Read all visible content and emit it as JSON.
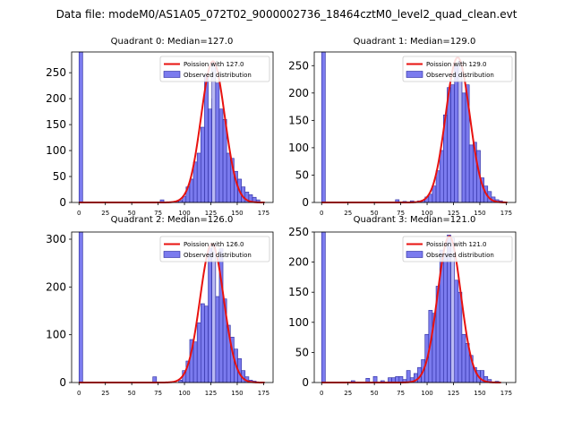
{
  "page_title": "Data file: modeM0/AS1A05_072T02_9000002736_18464cztM0_level2_quad_clean.evt",
  "colors": {
    "bar_fill": "#7b7bee",
    "bar_edge": "#2a2aa0",
    "bar_highlight": "#b9b9f2",
    "poisson_line": "#e8120f",
    "axis": "#000000",
    "legend_border": "#cccccc"
  },
  "chart_data": [
    {
      "type": "bar",
      "title": "Quadrant 0: Median=127.0",
      "xlabel": "",
      "ylabel": "",
      "xlim": [
        -7,
        184
      ],
      "ylim": [
        0,
        290
      ],
      "xticks": [
        0,
        25,
        50,
        75,
        100,
        125,
        150,
        175
      ],
      "yticks": [
        0,
        50,
        100,
        150,
        200,
        250
      ],
      "bin_width": 3.5,
      "legend": {
        "position": "top-right",
        "entries": [
          "Poission with 127.0",
          "Observed distribution"
        ]
      },
      "bins": [
        {
          "x": 0,
          "count": 290
        },
        {
          "x": 56,
          "count": 1
        },
        {
          "x": 77,
          "count": 5
        },
        {
          "x": 91,
          "count": 2
        },
        {
          "x": 94.5,
          "count": 4
        },
        {
          "x": 98,
          "count": 12
        },
        {
          "x": 101.5,
          "count": 30
        },
        {
          "x": 105,
          "count": 45
        },
        {
          "x": 108.5,
          "count": 78
        },
        {
          "x": 112,
          "count": 95
        },
        {
          "x": 115.5,
          "count": 145
        },
        {
          "x": 119,
          "count": 245
        },
        {
          "x": 122.5,
          "count": 180
        },
        {
          "x": 126,
          "count": 200
        },
        {
          "x": 129.5,
          "count": 230
        },
        {
          "x": 133,
          "count": 180
        },
        {
          "x": 136.5,
          "count": 160
        },
        {
          "x": 140,
          "count": 95
        },
        {
          "x": 143.5,
          "count": 85
        },
        {
          "x": 147,
          "count": 60
        },
        {
          "x": 150.5,
          "count": 45
        },
        {
          "x": 154,
          "count": 30
        },
        {
          "x": 157.5,
          "count": 20
        },
        {
          "x": 161,
          "count": 15
        },
        {
          "x": 164.5,
          "count": 10
        },
        {
          "x": 168,
          "count": 5
        }
      ],
      "poisson": {
        "name": "Poission with 127.0",
        "mean": 127.0,
        "peak": 272,
        "range": [
          0,
          176
        ]
      },
      "highlight": {
        "x": 126,
        "count": 270
      }
    },
    {
      "type": "bar",
      "title": "Quadrant 1: Median=129.0",
      "xlabel": "",
      "ylabel": "",
      "xlim": [
        -7,
        184
      ],
      "ylim": [
        0,
        275
      ],
      "xticks": [
        0,
        25,
        50,
        75,
        100,
        125,
        150,
        175
      ],
      "yticks": [
        0,
        50,
        100,
        150,
        200,
        250
      ],
      "bin_width": 3.5,
      "legend": {
        "position": "top-right",
        "entries": [
          "Poission with 129.0",
          "Observed distribution"
        ]
      },
      "bins": [
        {
          "x": 0,
          "count": 275
        },
        {
          "x": 70,
          "count": 5
        },
        {
          "x": 77,
          "count": 2
        },
        {
          "x": 84,
          "count": 3
        },
        {
          "x": 91,
          "count": 3
        },
        {
          "x": 94.5,
          "count": 4
        },
        {
          "x": 98,
          "count": 10
        },
        {
          "x": 101.5,
          "count": 15
        },
        {
          "x": 105,
          "count": 30
        },
        {
          "x": 108.5,
          "count": 58
        },
        {
          "x": 112,
          "count": 95
        },
        {
          "x": 115.5,
          "count": 160
        },
        {
          "x": 119,
          "count": 210
        },
        {
          "x": 122.5,
          "count": 215
        },
        {
          "x": 126,
          "count": 250
        },
        {
          "x": 129.5,
          "count": 225
        },
        {
          "x": 133,
          "count": 200
        },
        {
          "x": 136.5,
          "count": 215
        },
        {
          "x": 140,
          "count": 105
        },
        {
          "x": 143.5,
          "count": 110
        },
        {
          "x": 147,
          "count": 95
        },
        {
          "x": 150.5,
          "count": 45
        },
        {
          "x": 154,
          "count": 30
        },
        {
          "x": 157.5,
          "count": 20
        },
        {
          "x": 161,
          "count": 10
        },
        {
          "x": 164.5,
          "count": 5
        },
        {
          "x": 168,
          "count": 3
        }
      ],
      "poisson": {
        "name": "Poission with 129.0",
        "mean": 129.0,
        "peak": 265,
        "range": [
          0,
          176
        ]
      },
      "highlight": {
        "x": 129.5,
        "count": 258
      }
    },
    {
      "type": "bar",
      "title": "Quadrant 2: Median=126.0",
      "xlabel": "",
      "ylabel": "",
      "xlim": [
        -7,
        184
      ],
      "ylim": [
        0,
        315
      ],
      "xticks": [
        0,
        25,
        50,
        75,
        100,
        125,
        150,
        175
      ],
      "yticks": [
        0,
        100,
        200,
        300
      ],
      "bin_width": 3.5,
      "legend": {
        "position": "top-right",
        "entries": [
          "Poission with 126.0",
          "Observed distribution"
        ]
      },
      "bins": [
        {
          "x": 0,
          "count": 315
        },
        {
          "x": 70,
          "count": 12
        },
        {
          "x": 94.5,
          "count": 5
        },
        {
          "x": 98,
          "count": 25
        },
        {
          "x": 101.5,
          "count": 45
        },
        {
          "x": 105,
          "count": 90
        },
        {
          "x": 108.5,
          "count": 85
        },
        {
          "x": 112,
          "count": 125
        },
        {
          "x": 115.5,
          "count": 165
        },
        {
          "x": 119,
          "count": 160
        },
        {
          "x": 122.5,
          "count": 280
        },
        {
          "x": 126,
          "count": 275
        },
        {
          "x": 129.5,
          "count": 180
        },
        {
          "x": 133,
          "count": 280
        },
        {
          "x": 136.5,
          "count": 175
        },
        {
          "x": 140,
          "count": 120
        },
        {
          "x": 143.5,
          "count": 95
        },
        {
          "x": 147,
          "count": 70
        },
        {
          "x": 150.5,
          "count": 50
        },
        {
          "x": 154,
          "count": 25
        },
        {
          "x": 157.5,
          "count": 12
        },
        {
          "x": 161,
          "count": 5
        },
        {
          "x": 164.5,
          "count": 3
        }
      ],
      "poisson": {
        "name": "Poission with 126.0",
        "mean": 126.0,
        "peak": 290,
        "range": [
          0,
          176
        ]
      },
      "highlight": {
        "x": 126,
        "count": 290
      }
    },
    {
      "type": "bar",
      "title": "Quadrant 3: Median=121.0",
      "xlabel": "",
      "ylabel": "",
      "xlim": [
        -7,
        184
      ],
      "ylim": [
        0,
        250
      ],
      "xticks": [
        0,
        25,
        50,
        75,
        100,
        125,
        150,
        175
      ],
      "yticks": [
        0,
        50,
        100,
        150,
        200,
        250
      ],
      "bin_width": 3.5,
      "legend": {
        "position": "top-right",
        "entries": [
          "Poission with 121.0",
          "Observed distribution"
        ]
      },
      "bins": [
        {
          "x": 0,
          "count": 250
        },
        {
          "x": 28,
          "count": 3
        },
        {
          "x": 42,
          "count": 7
        },
        {
          "x": 49,
          "count": 10
        },
        {
          "x": 56,
          "count": 3
        },
        {
          "x": 63,
          "count": 8
        },
        {
          "x": 66.5,
          "count": 8
        },
        {
          "x": 70,
          "count": 10
        },
        {
          "x": 73.5,
          "count": 10
        },
        {
          "x": 77,
          "count": 5
        },
        {
          "x": 80.5,
          "count": 20
        },
        {
          "x": 84,
          "count": 8
        },
        {
          "x": 87.5,
          "count": 15
        },
        {
          "x": 91,
          "count": 25
        },
        {
          "x": 94.5,
          "count": 38
        },
        {
          "x": 98,
          "count": 80
        },
        {
          "x": 101.5,
          "count": 120
        },
        {
          "x": 105,
          "count": 115
        },
        {
          "x": 108.5,
          "count": 160
        },
        {
          "x": 112,
          "count": 220
        },
        {
          "x": 115.5,
          "count": 215
        },
        {
          "x": 119,
          "count": 245
        },
        {
          "x": 122.5,
          "count": 200
        },
        {
          "x": 126,
          "count": 170
        },
        {
          "x": 129.5,
          "count": 150
        },
        {
          "x": 133,
          "count": 80
        },
        {
          "x": 136.5,
          "count": 65
        },
        {
          "x": 140,
          "count": 45
        },
        {
          "x": 143.5,
          "count": 25
        },
        {
          "x": 147,
          "count": 20
        },
        {
          "x": 150.5,
          "count": 20
        },
        {
          "x": 154,
          "count": 10
        },
        {
          "x": 157.5,
          "count": 5
        },
        {
          "x": 164.5,
          "count": 2
        }
      ],
      "poisson": {
        "name": "Poission with 121.0",
        "mean": 121.0,
        "peak": 243,
        "range": [
          0,
          170
        ]
      },
      "highlight": {
        "x": 122.5,
        "count": 240
      }
    }
  ]
}
